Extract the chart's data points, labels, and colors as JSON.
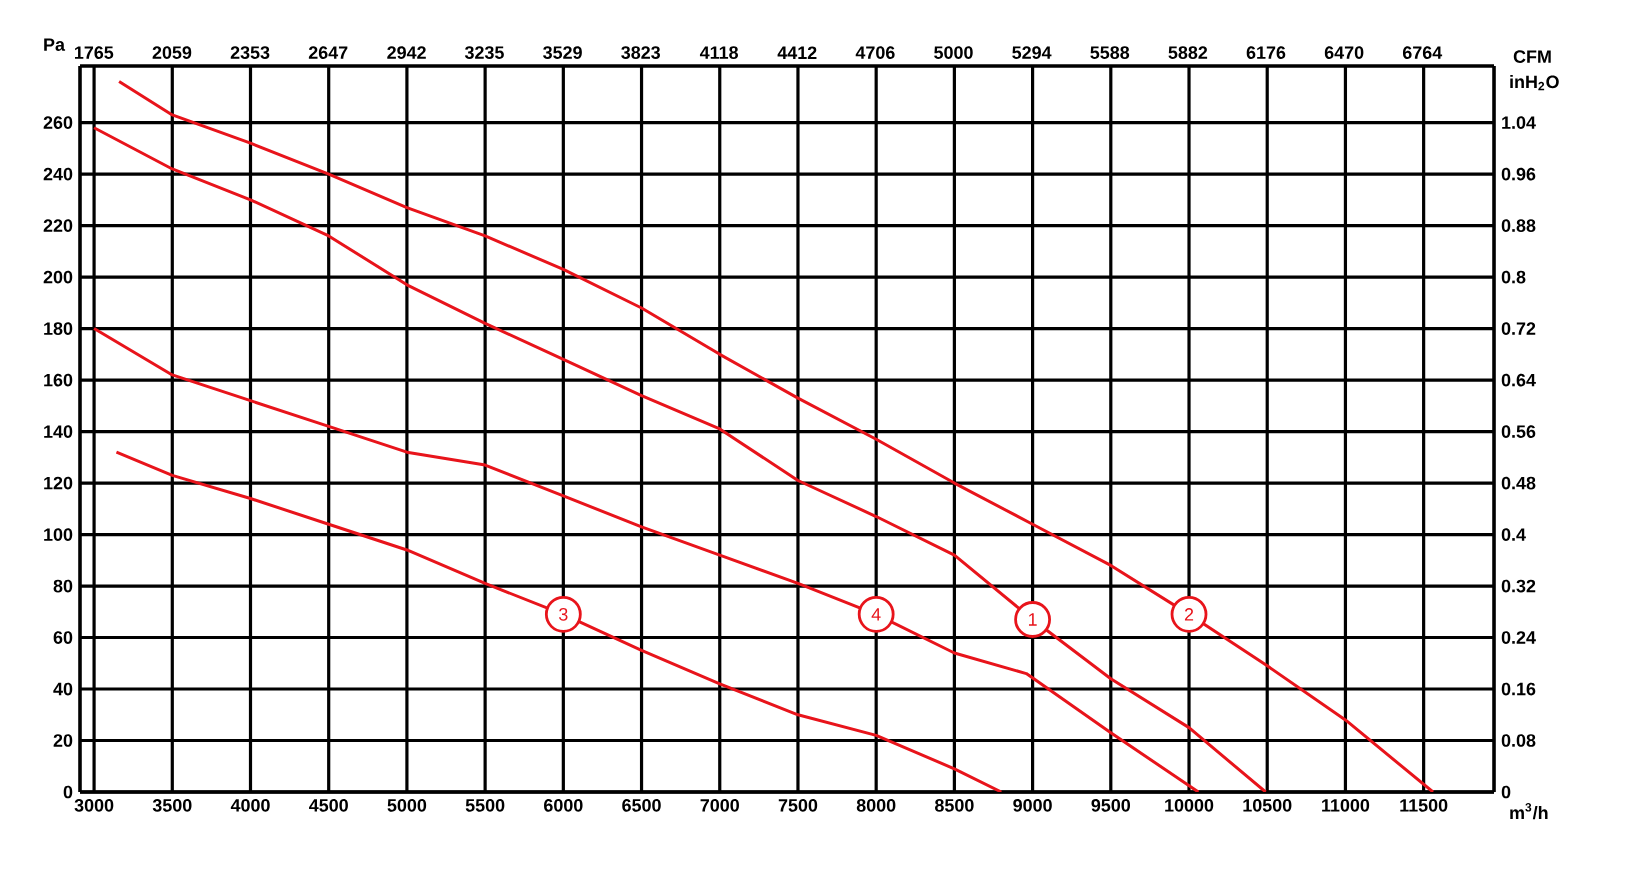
{
  "chart_data": {
    "type": "line",
    "xlabel": "m$^{3}$/h",
    "ylabel": "Pa",
    "x2label": "CFM",
    "y2label": "inH$_{2}$O",
    "xlim": [
      2910,
      11950
    ],
    "ylim": [
      0,
      282
    ],
    "xticks": [
      3000,
      3500,
      4000,
      4500,
      5000,
      5500,
      6000,
      6500,
      7000,
      7500,
      8000,
      8500,
      9000,
      9500,
      10000,
      10500,
      11000,
      11500
    ],
    "yticks": [
      0,
      20,
      40,
      60,
      80,
      100,
      120,
      140,
      160,
      180,
      200,
      220,
      240,
      260
    ],
    "x2lim": [
      1713,
      7034
    ],
    "x2ticks": [
      1765,
      2059,
      2353,
      2647,
      2942,
      3235,
      3529,
      3823,
      4118,
      4412,
      4706,
      5000,
      5294,
      5588,
      5882,
      6176,
      6470,
      6764
    ],
    "y2lim": [
      0,
      1.128
    ],
    "y2ticks": [
      0,
      0.08,
      0.16,
      0.24,
      0.32,
      0.4,
      0.48,
      0.56,
      0.64,
      0.72,
      0.8,
      0.88,
      0.96,
      1.04
    ],
    "grid": true,
    "series": [
      {
        "color": "#e8141b",
        "x": [
          3000,
          3500,
          4000,
          4500,
          5000,
          5500,
          6000,
          6500,
          7000,
          7500,
          8000,
          8500,
          9000,
          9500,
          10000,
          10490
        ],
        "values": [
          258,
          242,
          230,
          216,
          197,
          182,
          168,
          154,
          141,
          121,
          107,
          92,
          67,
          44,
          25,
          0
        ]
      },
      {
        "color": "#e8141b",
        "x": [
          3160,
          3500,
          4000,
          4500,
          5000,
          5500,
          6000,
          6500,
          7000,
          7500,
          8000,
          8500,
          9000,
          9500,
          10000,
          10500,
          11000,
          11560
        ],
        "values": [
          276,
          263,
          252,
          240,
          227,
          216,
          203,
          188,
          170,
          153,
          137,
          120,
          104,
          88,
          69,
          49,
          28,
          0
        ]
      },
      {
        "color": "#e8141b",
        "x": [
          3143,
          3500,
          4000,
          4500,
          5000,
          5500,
          6000,
          6500,
          7000,
          7500,
          8000,
          8500,
          8800
        ],
        "values": [
          132,
          123,
          114,
          104,
          94,
          81,
          69,
          55,
          42,
          30,
          22,
          9,
          0
        ]
      },
      {
        "color": "#e8141b",
        "x": [
          3000,
          3500,
          4000,
          4500,
          5000,
          5500,
          6000,
          6500,
          7000,
          7500,
          8000,
          8500,
          8960,
          9500,
          10060
        ],
        "values": [
          180,
          162,
          152,
          142,
          132,
          127,
          115,
          103,
          92,
          81,
          69,
          54,
          46,
          23,
          0
        ]
      }
    ],
    "annotations": [
      {
        "text": "1",
        "x": 9000,
        "y": 67
      },
      {
        "text": "2",
        "x": 10000,
        "y": 69
      },
      {
        "text": "3",
        "x": 6000,
        "y": 69
      },
      {
        "text": "4",
        "x": 8000,
        "y": 69
      }
    ]
  }
}
